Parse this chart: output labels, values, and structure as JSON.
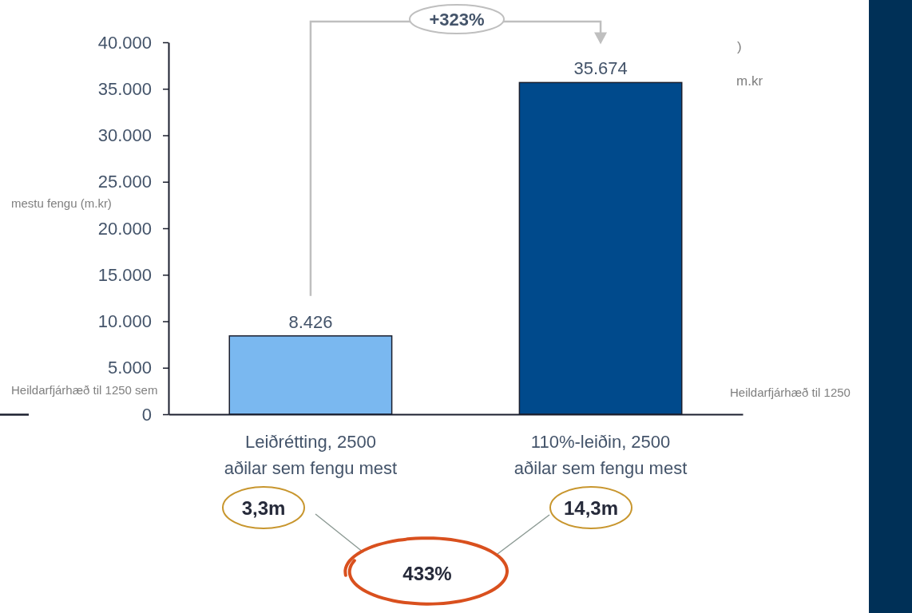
{
  "chart_data": {
    "type": "bar",
    "categories": [
      "Leiðrétting, 2500 aðilar sem fengu mest",
      "110%-leiðin, 2500 aðilar sem fengu mest"
    ],
    "values": [
      8426,
      35674
    ],
    "colors": [
      "#7ab8f0",
      "#004a8c"
    ],
    "value_labels": [
      "8.426",
      "35.674"
    ],
    "ylim": [
      0,
      40000
    ],
    "yticks": [
      {
        "value": 0,
        "label": "0"
      },
      {
        "value": 5000,
        "label": "5.000"
      },
      {
        "value": 10000,
        "label": "10.000"
      },
      {
        "value": 15000,
        "label": "15.000"
      },
      {
        "value": 20000,
        "label": "20.000"
      },
      {
        "value": 25000,
        "label": "25.000"
      },
      {
        "value": 30000,
        "label": "30.000"
      },
      {
        "value": 35000,
        "label": "35.000"
      },
      {
        "value": 40000,
        "label": "40.000"
      }
    ],
    "annotations": [
      "+323%",
      "3,3m",
      "14,3m",
      "433%",
      "mestu fengu (m.kr)",
      "Heildarfjárhæð til 1250 sem",
      ")",
      "m.kr",
      "Heildarfjárhæð til 1250"
    ]
  }
}
